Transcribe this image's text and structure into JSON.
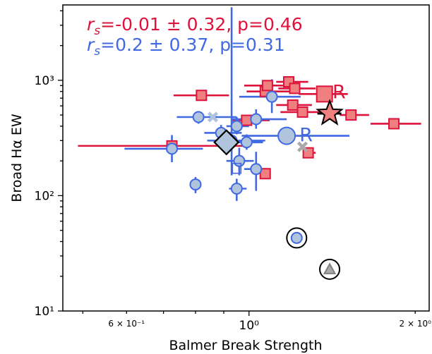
{
  "chart_data": {
    "type": "scatter",
    "xlabel": "Balmer Break Strength",
    "ylabel": "Broad Hα EW",
    "xscale": "log",
    "yscale": "log",
    "xlim": [
      0.46,
      2.12
    ],
    "ylim": [
      10,
      4500
    ],
    "x_major_ticks": [
      {
        "value": 1.0,
        "label": "10⁰"
      }
    ],
    "x_minor_labeled_ticks": [
      {
        "value": 0.6,
        "label": "6 × 10⁻¹"
      },
      {
        "value": 2.0,
        "label": "2 × 10⁰"
      }
    ],
    "y_major_ticks": [
      {
        "value": 10,
        "label": "10¹"
      },
      {
        "value": 100,
        "label": "10²"
      },
      {
        "value": 1000,
        "label": "10³"
      }
    ],
    "grid": false,
    "annotations": [
      {
        "id": "red",
        "text_r": "r",
        "text_sub": "s",
        "text_rest": "=-0.01 ± 0.32, p=0.46",
        "color": "#dc143c"
      },
      {
        "id": "blue",
        "text_r": "r",
        "text_sub": "s",
        "text_rest": "=0.2 ± 0.37, p=0.31",
        "color": "#4169e1"
      }
    ],
    "series": [
      {
        "color": "#dc143c",
        "fill": "#f08080",
        "marker": "square",
        "points": [
          {
            "x": 0.82,
            "y": 740,
            "xerr": [
              0.09,
              0.1
            ],
            "yerr": [
              60,
              60
            ]
          },
          {
            "x": 0.725,
            "y": 270,
            "xerr": [
              0.235,
              0.28
            ],
            "yerr": [
              15,
              15
            ]
          },
          {
            "x": 0.99,
            "y": 450,
            "xerr": [
              0.06,
              0.1
            ],
            "yerr": [
              30,
              30
            ]
          },
          {
            "x": 1.07,
            "y": 800,
            "xerr": [
              0.08,
              0.13
            ],
            "yerr": [
              40,
              40
            ]
          },
          {
            "x": 1.08,
            "y": 900,
            "xerr": [
              0.1,
              0.14
            ],
            "yerr": [
              40,
              40
            ]
          },
          {
            "x": 1.18,
            "y": 970,
            "xerr": [
              0.06,
              0.1
            ],
            "yerr": [
              40,
              40
            ]
          },
          {
            "x": 1.21,
            "y": 850,
            "xerr": [
              0.08,
              0.11
            ],
            "yerr": [
              40,
              40
            ]
          },
          {
            "x": 1.2,
            "y": 610,
            "xerr": [
              0.08,
              0.1
            ],
            "yerr": [
              30,
              30
            ]
          },
          {
            "x": 1.25,
            "y": 530,
            "xerr": [
              0.11,
              0.13
            ],
            "yerr": [
              30,
              30
            ]
          },
          {
            "x": 1.37,
            "y": 760,
            "xerr": [
              0.14,
              0.14
            ],
            "yerr": [
              40,
              40
            ],
            "size": "large"
          },
          {
            "x": 1.07,
            "y": 155,
            "xerr": [
              0.01,
              0.01
            ],
            "yerr": [
              8,
              8
            ]
          },
          {
            "x": 1.28,
            "y": 235,
            "xerr": [
              0.02,
              0.04
            ],
            "yerr": [
              10,
              10
            ]
          },
          {
            "x": 1.53,
            "y": 500,
            "xerr": [
              0.07,
              0.12
            ],
            "yerr": [
              30,
              30
            ]
          },
          {
            "x": 1.83,
            "y": 420,
            "xerr": [
              0.17,
              0.22
            ],
            "yerr": [
              20,
              20
            ]
          }
        ],
        "labels": [
          {
            "x": 1.4,
            "y": 800,
            "text": "R"
          }
        ],
        "star": {
          "x": 1.4,
          "y": 515,
          "fill": "#f08080",
          "xerr": [
            0.07,
            0.07
          ]
        }
      },
      {
        "color": "#4169e1",
        "fill": "#b0c4de",
        "marker": "circle",
        "points": [
          {
            "x": 0.81,
            "y": 480,
            "xerr": [
              0.07,
              0.14
            ],
            "yerr": [
              60,
              60
            ]
          },
          {
            "x": 0.725,
            "y": 255,
            "xerr": [
              0.13,
              0.1
            ],
            "yerr": [
              60,
              80
            ]
          },
          {
            "x": 0.89,
            "y": 350,
            "xerr": [
              0.06,
              0.08
            ],
            "yerr": [
              40,
              60
            ]
          },
          {
            "x": 0.95,
            "y": 400,
            "xerr": [
              0.04,
              0.05
            ],
            "yerr": [
              60,
              80
            ]
          },
          {
            "x": 0.96,
            "y": 200,
            "xerr": [
              0.05,
              0.06
            ],
            "yerr": [
              50,
              60
            ]
          },
          {
            "x": 0.99,
            "y": 290,
            "xerr": [
              0.06,
              0.07
            ],
            "yerr": [
              40,
              50
            ]
          },
          {
            "x": 1.03,
            "y": 460,
            "xerr": [
              0.1,
              0.14
            ],
            "yerr": [
              80,
              100
            ]
          },
          {
            "x": 1.03,
            "y": 170,
            "xerr": [
              0.05,
              0.05
            ],
            "yerr": [
              60,
              70
            ]
          },
          {
            "x": 1.1,
            "y": 720,
            "xerr": [
              0.14,
              0.14
            ],
            "yerr": [
              200,
              300
            ]
          },
          {
            "x": 0.8,
            "y": 125,
            "xerr": [
              0.0,
              0.0
            ],
            "yerr": [
              20,
              20
            ]
          },
          {
            "x": 0.95,
            "y": 115,
            "xerr": [
              0.03,
              0.04
            ],
            "yerr": [
              25,
              25
            ]
          },
          {
            "x": 1.17,
            "y": 330,
            "xerr": [
              0.2,
              0.35
            ],
            "yerr": [
              30,
              30
            ],
            "size": "large"
          },
          {
            "x": 1.22,
            "y": 43,
            "xerr": [
              0,
              0
            ],
            "yerr": [
              0,
              0
            ],
            "circled": true
          },
          {
            "x": 0.93,
            "y": 300,
            "xerr": [
              0.09,
              0.14
            ],
            "yerr": [
              150,
              4000
            ]
          }
        ],
        "labels": [
          {
            "x": 1.22,
            "y": 340,
            "text": "R"
          }
        ],
        "diamond": {
          "x": 0.91,
          "y": 290,
          "fill": "#b0c4de"
        },
        "crosses": [
          {
            "x": 0.86,
            "y": 480
          }
        ],
        "small_boxes": [
          {
            "x": 0.95,
            "y": 170
          }
        ]
      },
      {
        "color": "#808080",
        "fill": "#a9a9a9",
        "marker": "triangle",
        "points": [
          {
            "x": 1.4,
            "y": 23,
            "circled": true
          }
        ],
        "crosses": [
          {
            "x": 1.25,
            "y": 265
          }
        ]
      }
    ]
  }
}
